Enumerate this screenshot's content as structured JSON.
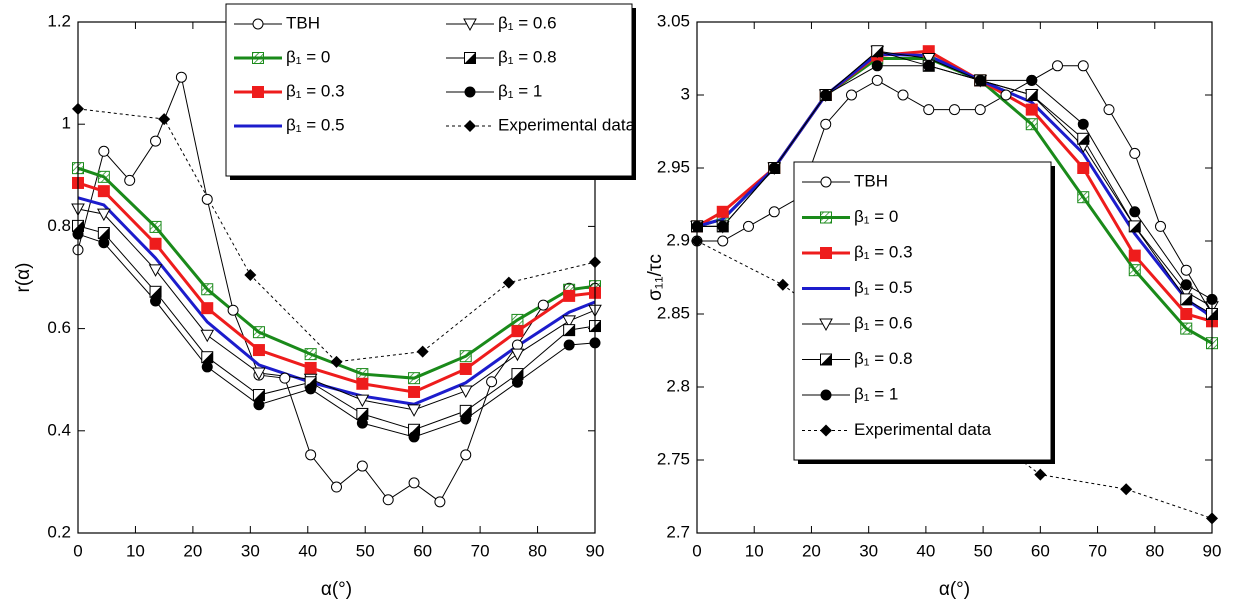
{
  "chart_data": [
    {
      "type": "line",
      "x_label": "α(°)",
      "y_label": "r(α)",
      "xlim": [
        0,
        90
      ],
      "xticks": [
        0,
        10,
        20,
        30,
        40,
        50,
        60,
        70,
        80,
        90
      ],
      "ylim": [
        0.2,
        1.2
      ],
      "yticks": [
        0.2,
        0.4,
        0.6,
        0.8,
        1,
        1.2
      ],
      "legend": "top-right-two-columns",
      "series": [
        {
          "name": "TBH",
          "color": "#000000",
          "marker": "circle-open",
          "line_style": "solid",
          "linewidth": 1,
          "x": [
            0,
            4.5,
            9,
            13.5,
            18,
            22.5,
            27,
            31.5,
            36,
            40.5,
            45,
            49.5,
            54,
            58.5,
            63,
            67.5,
            72,
            76.5,
            81,
            85.5,
            90
          ],
          "values": [
            0.754,
            0.947,
            0.89,
            0.967,
            1.092,
            0.853,
            0.636,
            0.509,
            0.503,
            0.353,
            0.29,
            0.331,
            0.265,
            0.298,
            0.261,
            0.353,
            0.496,
            0.568,
            0.646,
            0.679,
            0.679
          ]
        },
        {
          "name": "β₁ = 0",
          "color": "#1a8a1a",
          "marker": "square-hatched",
          "line_style": "solid",
          "linewidth": 3,
          "x": [
            0,
            4.5,
            13.5,
            22.5,
            31.5,
            40.5,
            49.5,
            58.5,
            67.5,
            76.5,
            85.5,
            90
          ],
          "values": [
            0.914,
            0.897,
            0.799,
            0.677,
            0.593,
            0.55,
            0.511,
            0.503,
            0.546,
            0.617,
            0.676,
            0.683
          ]
        },
        {
          "name": "β₁ = 0.3",
          "color": "#ee1c1c",
          "marker": "square",
          "line_style": "solid",
          "linewidth": 3,
          "x": [
            0,
            4.5,
            13.5,
            22.5,
            31.5,
            40.5,
            49.5,
            58.5,
            67.5,
            76.5,
            85.5,
            90
          ],
          "values": [
            0.885,
            0.869,
            0.766,
            0.64,
            0.558,
            0.523,
            0.492,
            0.476,
            0.521,
            0.595,
            0.664,
            0.67
          ]
        },
        {
          "name": "β₁ = 0.5",
          "color": "#1c1ccc",
          "marker": "none",
          "line_style": "solid",
          "linewidth": 3,
          "x": [
            0,
            4.5,
            13.5,
            22.5,
            31.5,
            40.5,
            49.5,
            58.5,
            67.5,
            76.5,
            85.5,
            90
          ],
          "values": [
            0.856,
            0.842,
            0.738,
            0.613,
            0.529,
            0.495,
            0.468,
            0.452,
            0.494,
            0.566,
            0.632,
            0.652
          ]
        },
        {
          "name": "β₁ = 0.6",
          "color": "#000000",
          "marker": "triangle-down",
          "line_style": "solid",
          "linewidth": 1,
          "x": [
            0,
            4.5,
            13.5,
            22.5,
            31.5,
            40.5,
            49.5,
            58.5,
            67.5,
            76.5,
            85.5,
            90
          ],
          "values": [
            0.834,
            0.824,
            0.715,
            0.587,
            0.513,
            0.501,
            0.46,
            0.441,
            0.478,
            0.55,
            0.615,
            0.636
          ]
        },
        {
          "name": "β₁ = 0.8",
          "color": "#000000",
          "marker": "square-half",
          "line_style": "solid",
          "linewidth": 1,
          "x": [
            0,
            4.5,
            13.5,
            22.5,
            31.5,
            40.5,
            49.5,
            58.5,
            67.5,
            76.5,
            85.5,
            90
          ],
          "values": [
            0.801,
            0.787,
            0.672,
            0.544,
            0.47,
            0.495,
            0.433,
            0.402,
            0.439,
            0.511,
            0.597,
            0.605
          ]
        },
        {
          "name": "β₁ = 1",
          "color": "#000000",
          "marker": "circle",
          "line_style": "solid",
          "linewidth": 1,
          "x": [
            0,
            4.5,
            13.5,
            22.5,
            31.5,
            40.5,
            49.5,
            58.5,
            67.5,
            76.5,
            85.5,
            90
          ],
          "values": [
            0.785,
            0.768,
            0.654,
            0.525,
            0.451,
            0.482,
            0.415,
            0.388,
            0.423,
            0.495,
            0.568,
            0.572
          ]
        },
        {
          "name": "Experimental data",
          "color": "#000000",
          "marker": "diamond",
          "line_style": "dashed",
          "linewidth": 1,
          "x": [
            0,
            15,
            30,
            45,
            60,
            75,
            90
          ],
          "values": [
            1.03,
            1.01,
            0.705,
            0.535,
            0.555,
            0.69,
            0.73
          ]
        }
      ]
    },
    {
      "type": "line",
      "x_label": "α(°)",
      "y_label": "σ₁₁/τc",
      "xlim": [
        0,
        90
      ],
      "xticks": [
        0,
        10,
        20,
        30,
        40,
        50,
        60,
        70,
        80,
        90
      ],
      "ylim": [
        2.7,
        3.05
      ],
      "yticks": [
        2.7,
        2.75,
        2.8,
        2.85,
        2.9,
        2.95,
        3,
        3.05
      ],
      "legend": "center-one-column",
      "series": [
        {
          "name": "TBH",
          "color": "#000000",
          "marker": "circle-open",
          "line_style": "solid",
          "linewidth": 1,
          "x": [
            0,
            4.5,
            9,
            13.5,
            18,
            22.5,
            27,
            31.5,
            36,
            40.5,
            45,
            49.5,
            54,
            58.5,
            63,
            67.5,
            72,
            76.5,
            81,
            85.5,
            90
          ],
          "values": [
            2.9,
            2.9,
            2.91,
            2.92,
            2.93,
            2.98,
            3.0,
            3.01,
            3.0,
            2.99,
            2.99,
            2.99,
            3.0,
            3.01,
            3.02,
            3.02,
            2.99,
            2.96,
            2.91,
            2.88,
            2.85
          ]
        },
        {
          "name": "β₁ = 0",
          "color": "#1a8a1a",
          "marker": "square-hatched",
          "line_style": "solid",
          "linewidth": 3,
          "x": [
            0,
            4.5,
            13.5,
            22.5,
            31.5,
            40.5,
            49.5,
            58.5,
            67.5,
            76.5,
            85.5,
            90
          ],
          "values": [
            2.91,
            2.915,
            2.95,
            3.0,
            3.025,
            3.025,
            3.01,
            2.98,
            2.93,
            2.88,
            2.84,
            2.83
          ]
        },
        {
          "name": "β₁ = 0.3",
          "color": "#ee1c1c",
          "marker": "square",
          "line_style": "solid",
          "linewidth": 3,
          "x": [
            0,
            4.5,
            13.5,
            22.5,
            31.5,
            40.5,
            49.5,
            58.5,
            67.5,
            76.5,
            85.5,
            90
          ],
          "values": [
            2.91,
            2.92,
            2.95,
            3.0,
            3.027,
            3.03,
            3.01,
            2.99,
            2.95,
            2.89,
            2.85,
            2.845
          ]
        },
        {
          "name": "β₁ = 0.5",
          "color": "#1c1ccc",
          "marker": "none",
          "line_style": "solid",
          "linewidth": 3,
          "x": [
            0,
            4.5,
            13.5,
            22.5,
            31.5,
            40.5,
            49.5,
            58.5,
            67.5,
            76.5,
            85.5,
            90
          ],
          "values": [
            2.91,
            2.915,
            2.95,
            3.0,
            3.028,
            3.027,
            3.01,
            2.995,
            2.96,
            2.905,
            2.86,
            2.848
          ]
        },
        {
          "name": "β₁ = 0.6",
          "color": "#000000",
          "marker": "triangle-down",
          "line_style": "solid",
          "linewidth": 1,
          "x": [
            0,
            4.5,
            13.5,
            22.5,
            31.5,
            40.5,
            49.5,
            58.5,
            67.5,
            76.5,
            85.5,
            90
          ],
          "values": [
            2.91,
            2.91,
            2.95,
            3.0,
            3.03,
            3.025,
            3.01,
            3.0,
            2.965,
            2.91,
            2.865,
            2.855
          ]
        },
        {
          "name": "β₁ = 0.8",
          "color": "#000000",
          "marker": "square-half",
          "line_style": "solid",
          "linewidth": 1,
          "x": [
            0,
            4.5,
            13.5,
            22.5,
            31.5,
            40.5,
            49.5,
            58.5,
            67.5,
            76.5,
            85.5,
            90
          ],
          "values": [
            2.91,
            2.91,
            2.95,
            3.0,
            3.03,
            3.02,
            3.01,
            3.0,
            2.97,
            2.91,
            2.86,
            2.85
          ]
        },
        {
          "name": "β₁ = 1",
          "color": "#000000",
          "marker": "circle",
          "line_style": "solid",
          "linewidth": 1,
          "x": [
            0,
            4.5,
            13.5,
            22.5,
            31.5,
            40.5,
            49.5,
            58.5,
            67.5,
            76.5,
            85.5,
            90
          ],
          "values": [
            2.91,
            2.91,
            2.95,
            3.0,
            3.02,
            3.02,
            3.01,
            3.01,
            2.98,
            2.92,
            2.87,
            2.86
          ]
        },
        {
          "name": "Experimental data",
          "color": "#000000",
          "marker": "diamond",
          "line_style": "dashed",
          "linewidth": 1,
          "x": [
            0,
            15,
            60,
            75,
            90
          ],
          "values": [
            2.9,
            2.87,
            2.74,
            2.73,
            2.71
          ]
        }
      ]
    }
  ]
}
